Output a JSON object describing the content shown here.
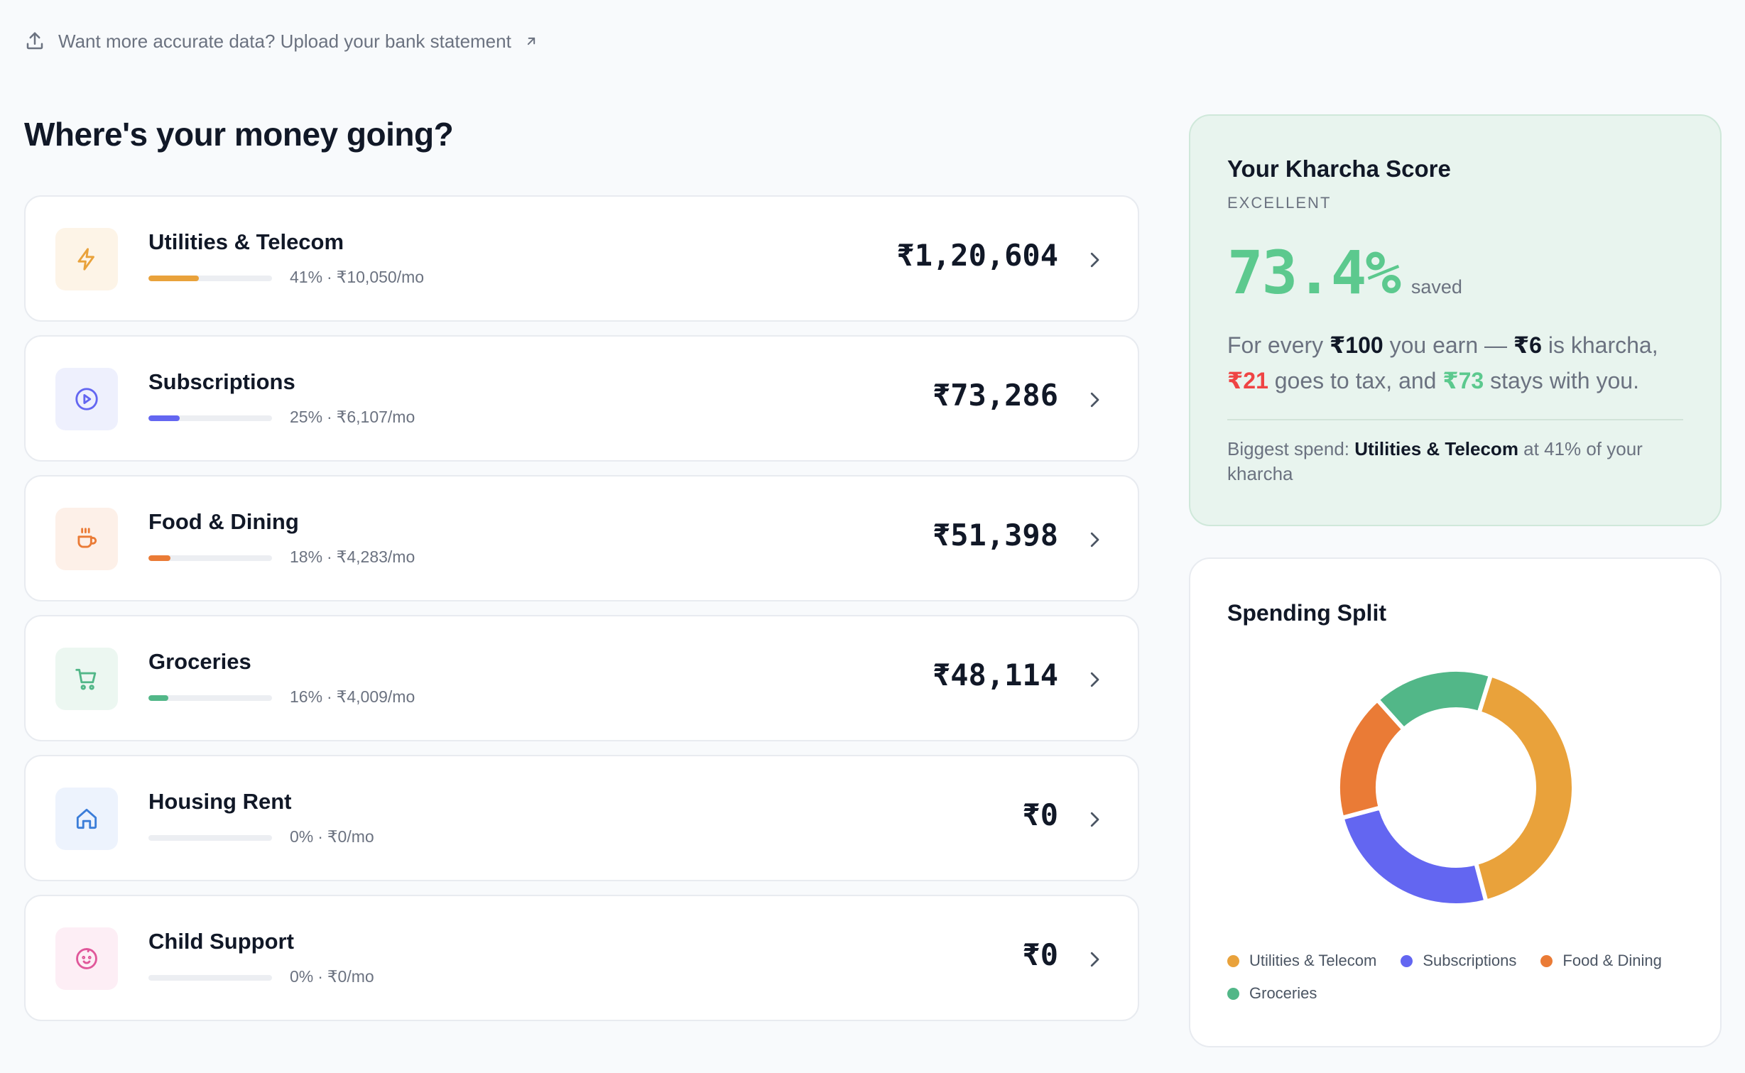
{
  "banner": {
    "text": "Want more accurate data? Upload your bank statement",
    "icon": "upload-icon",
    "link_icon": "external-link-icon"
  },
  "page_title": "Where's your money going?",
  "categories": [
    {
      "name": "Utilities & Telecom",
      "share_pct": 41,
      "percent": "41%",
      "monthly": "₹10,050/mo",
      "amount": "₹1,20,604",
      "color": "#e9a23b",
      "tint": "#fdf4e7",
      "icon": "bolt-icon"
    },
    {
      "name": "Subscriptions",
      "share_pct": 25,
      "percent": "25%",
      "monthly": "₹6,107/mo",
      "amount": "₹73,286",
      "color": "#6366f1",
      "tint": "#eef0fd",
      "icon": "play-circle-icon"
    },
    {
      "name": "Food & Dining",
      "share_pct": 18,
      "percent": "18%",
      "monthly": "₹4,283/mo",
      "amount": "₹51,398",
      "color": "#ea7b36",
      "tint": "#fdf0e8",
      "icon": "coffee-cup-icon"
    },
    {
      "name": "Groceries",
      "share_pct": 16,
      "percent": "16%",
      "monthly": "₹4,009/mo",
      "amount": "₹48,114",
      "color": "#52b788",
      "tint": "#ecf7f1",
      "icon": "shopping-cart-icon"
    },
    {
      "name": "Housing Rent",
      "share_pct": 0,
      "percent": "0%",
      "monthly": "₹0/mo",
      "amount": "₹0",
      "color": "#3b7dd8",
      "tint": "#edf3fd",
      "icon": "home-icon"
    },
    {
      "name": "Child Support",
      "share_pct": 0,
      "percent": "0%",
      "monthly": "₹0/mo",
      "amount": "₹0",
      "color": "#e0579a",
      "tint": "#fdeef5",
      "icon": "baby-icon"
    }
  ],
  "score": {
    "title": "Your Kharcha Score",
    "rating": "EXCELLENT",
    "value": "73.4%",
    "unit": "saved",
    "s_pre": "For every",
    "s_earn_amt": "₹100",
    "s_earn": "you earn —",
    "s_kharcha_amt": "₹6",
    "s_kharcha": "is kharcha,",
    "s_tax_amt": "₹21",
    "s_tax": "goes to tax, and",
    "s_stay_amt": "₹73",
    "s_stay": "stays with you.",
    "b_pre": "Biggest spend:",
    "b_name": "Utilities & Telecom",
    "b_post": "at 41% of your kharcha",
    "colors": {
      "value": "#5cc98e",
      "tax": "#ef4444"
    }
  },
  "split": {
    "title": "Spending Split"
  },
  "chart_data": {
    "type": "pie",
    "title": "Spending Split",
    "categories": [
      "Utilities & Telecom",
      "Subscriptions",
      "Food & Dining",
      "Groceries"
    ],
    "values": [
      120604,
      73286,
      51398,
      48114
    ],
    "colors": [
      "#e9a23b",
      "#6366f1",
      "#ea7b36",
      "#52b788"
    ],
    "donut": true,
    "legend": "bottom"
  }
}
